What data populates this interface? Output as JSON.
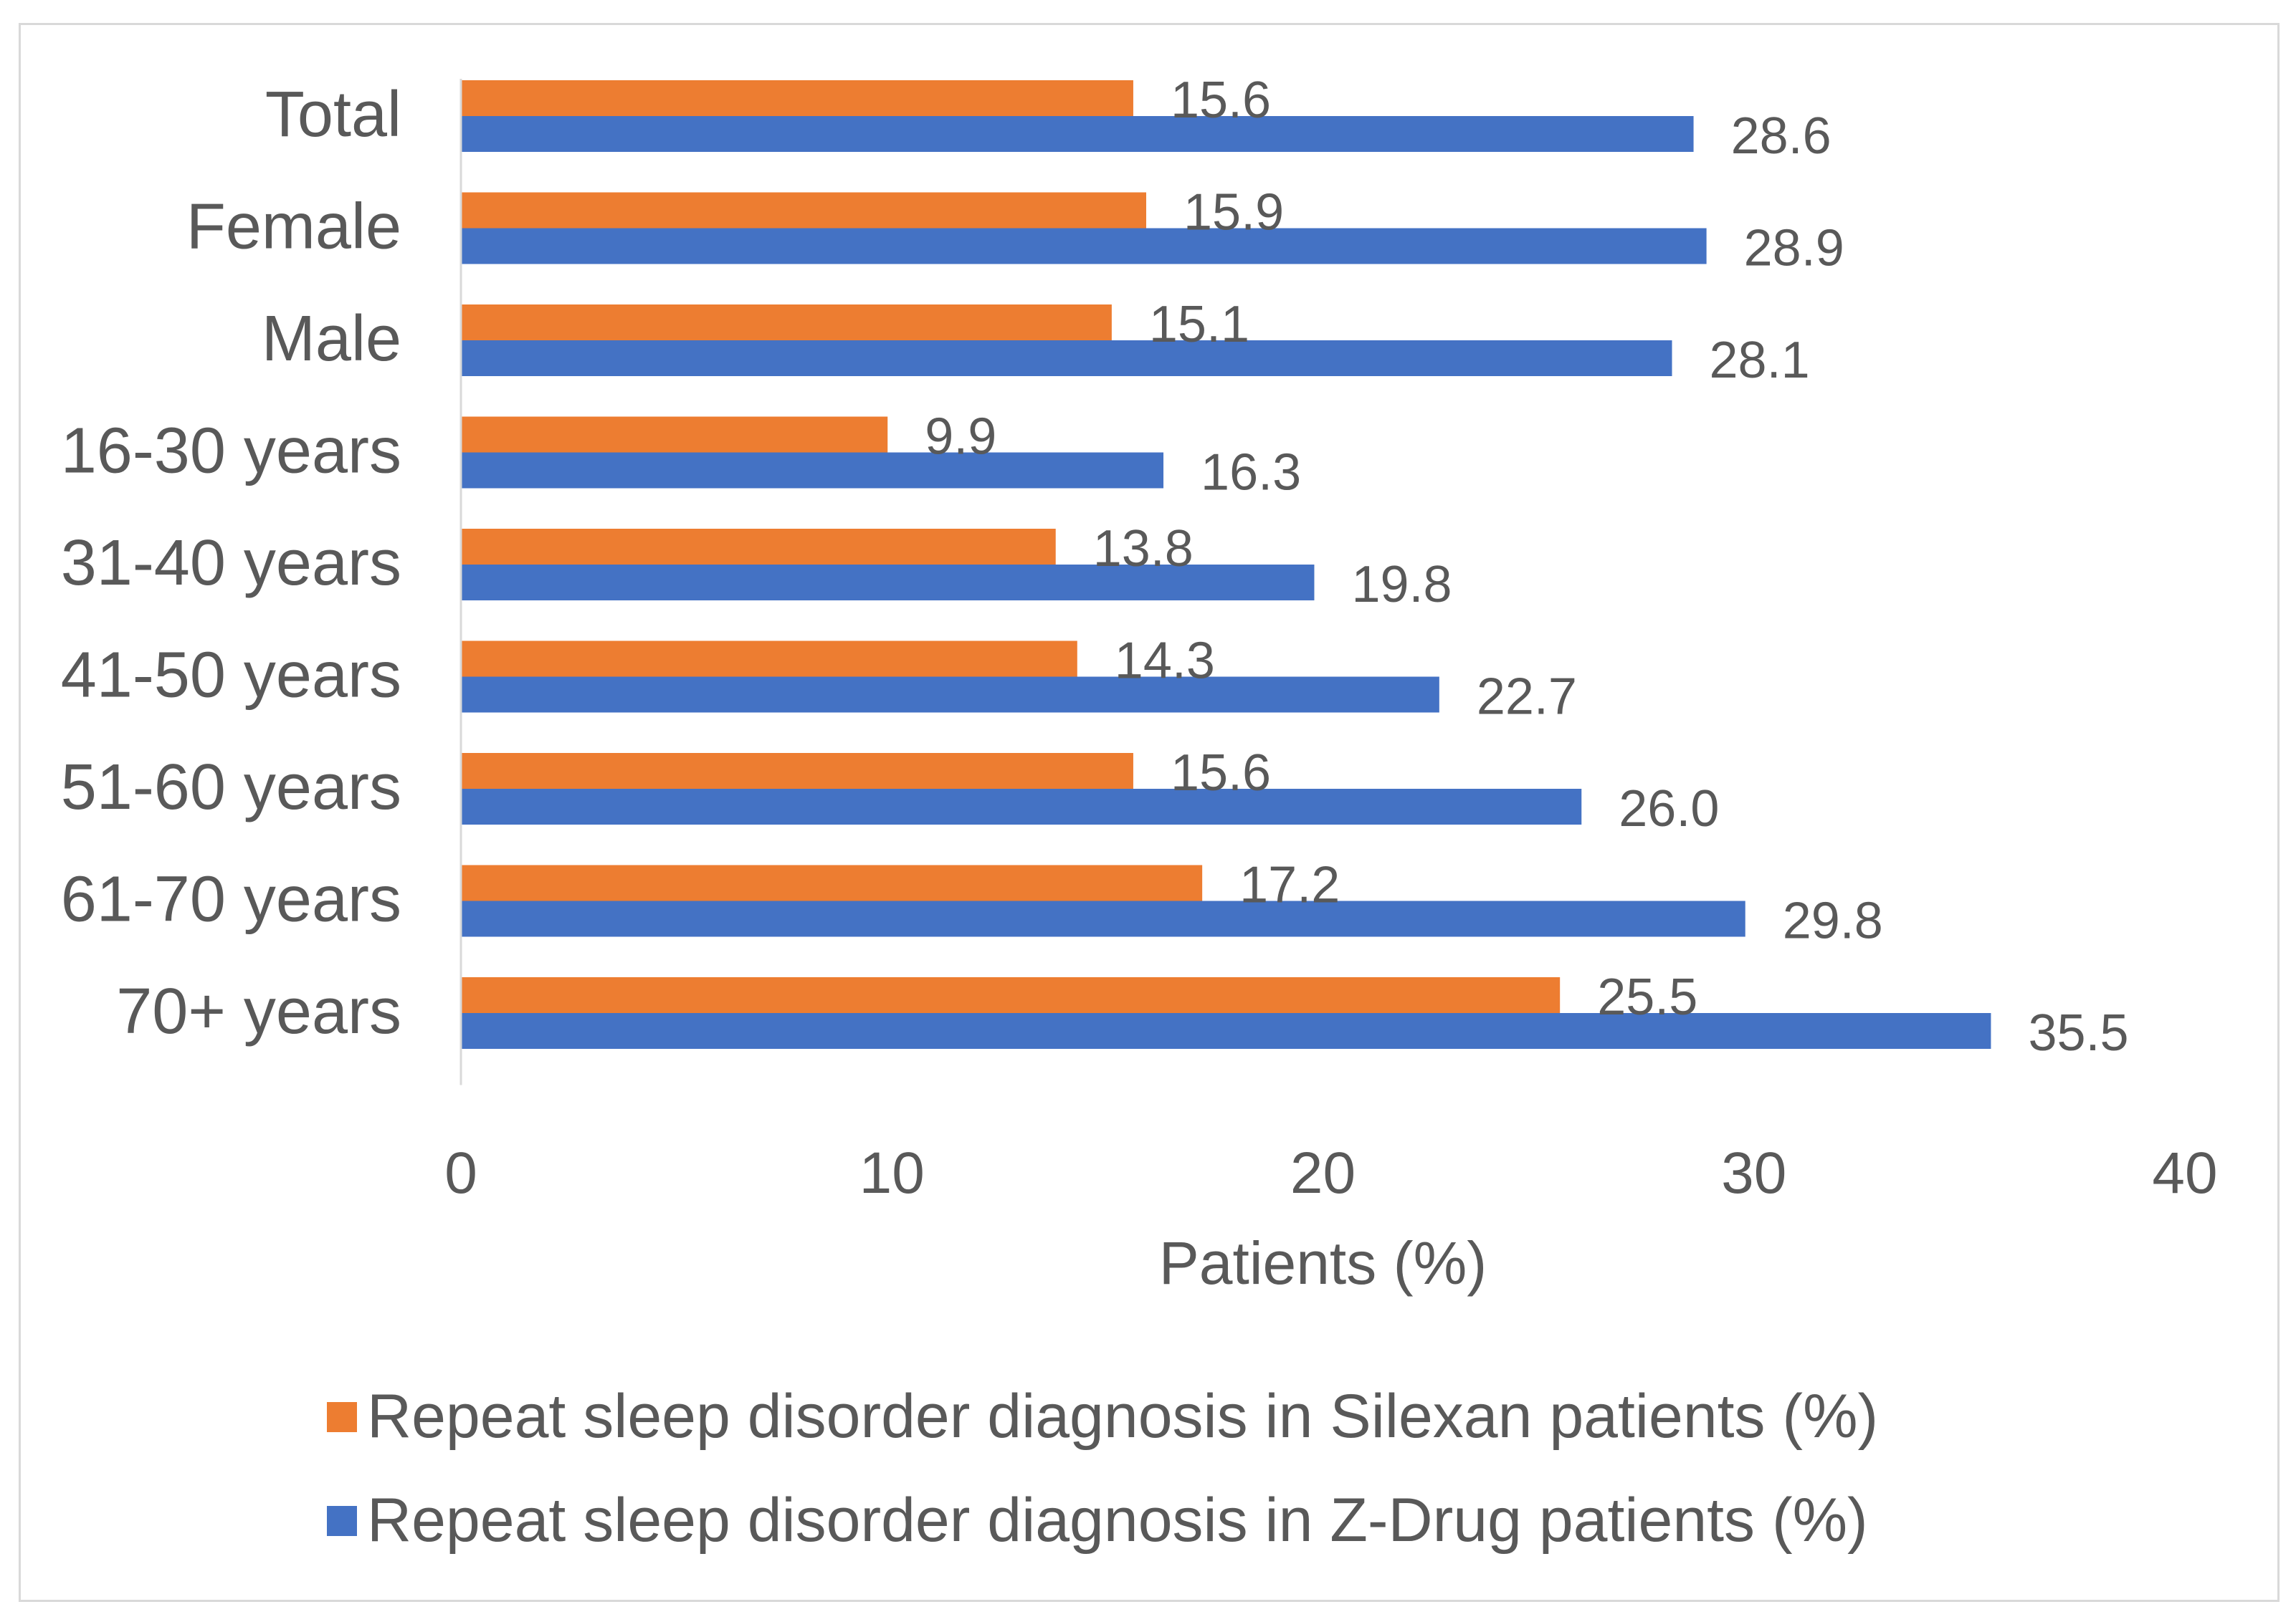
{
  "chart_data": {
    "type": "bar",
    "orientation": "horizontal",
    "categories": [
      "Total",
      "Female",
      "Male",
      "16-30 years",
      "31-40 years",
      "41-50 years",
      "51-60 years",
      "61-70 years",
      "70+ years"
    ],
    "series": [
      {
        "name": "Repeat sleep disorder diagnosis in Silexan patients (%)",
        "color": "#ED7D31",
        "values": [
          15.6,
          15.9,
          15.1,
          9.9,
          13.8,
          14.3,
          15.6,
          17.2,
          25.5
        ],
        "labels": [
          "15.6",
          "15.9",
          "15.1",
          "9.9",
          "13.8",
          "14.3",
          "15.6",
          "17.2",
          "25.5"
        ]
      },
      {
        "name": "Repeat sleep disorder diagnosis in Z-Drug patients (%)",
        "color": "#4472C4",
        "values": [
          28.6,
          28.9,
          28.1,
          16.3,
          19.8,
          22.7,
          26.0,
          29.8,
          35.5
        ],
        "labels": [
          "28.6",
          "28.9",
          "28.1",
          "16.3",
          "19.8",
          "22.7",
          "26.0",
          "29.8",
          "35.5"
        ]
      }
    ],
    "xlabel": "Patients (%)",
    "ylabel": "",
    "xlim": [
      0,
      40
    ],
    "xticks": [
      "0",
      "10",
      "20",
      "30",
      "40"
    ],
    "grid": false,
    "legend_position": "bottom"
  }
}
